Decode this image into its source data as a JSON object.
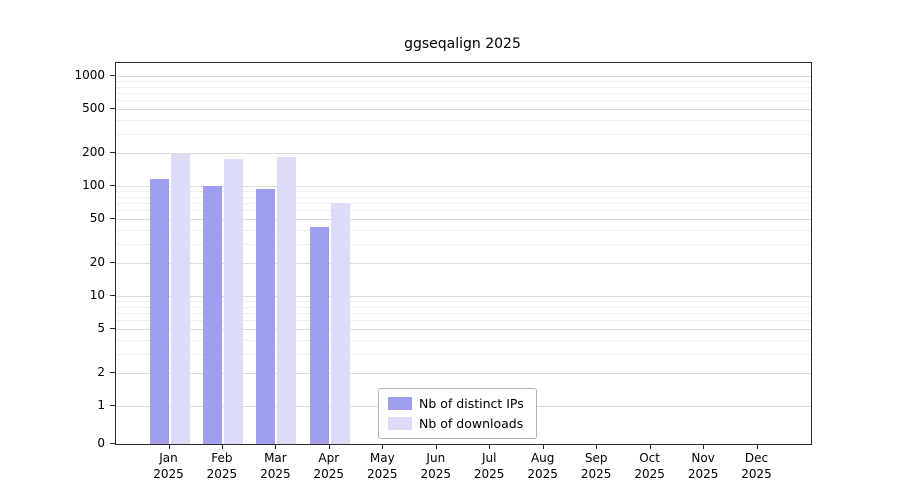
{
  "chart_data": {
    "type": "bar",
    "title": "ggseqalign 2025",
    "xlabel": "",
    "ylabel": "",
    "y_scale": "log-with-zero-baseline",
    "y_ticks": [
      1000,
      500,
      200,
      100,
      50,
      20,
      10,
      5,
      2,
      1,
      0
    ],
    "x_tick_months": [
      "Jan",
      "Feb",
      "Mar",
      "Apr",
      "May",
      "Jun",
      "Jul",
      "Aug",
      "Sep",
      "Oct",
      "Nov",
      "Dec"
    ],
    "x_tick_year": "2025",
    "categories": [
      "Jan 2025",
      "Feb 2025",
      "Mar 2025",
      "Apr 2025",
      "May 2025",
      "Jun 2025",
      "Jul 2025",
      "Aug 2025",
      "Sep 2025",
      "Oct 2025",
      "Nov 2025",
      "Dec 2025"
    ],
    "series": [
      {
        "name": "Nb of distinct IPs",
        "color": "#9f9fef",
        "values": [
          115,
          100,
          95,
          42,
          0,
          0,
          0,
          0,
          0,
          0,
          0,
          0
        ]
      },
      {
        "name": "Nb of downloads",
        "color": "#dcdcf9",
        "values": [
          195,
          175,
          185,
          70,
          0,
          0,
          0,
          0,
          0,
          0,
          0,
          0
        ]
      }
    ],
    "legend_position": "bottom-center-inside"
  }
}
